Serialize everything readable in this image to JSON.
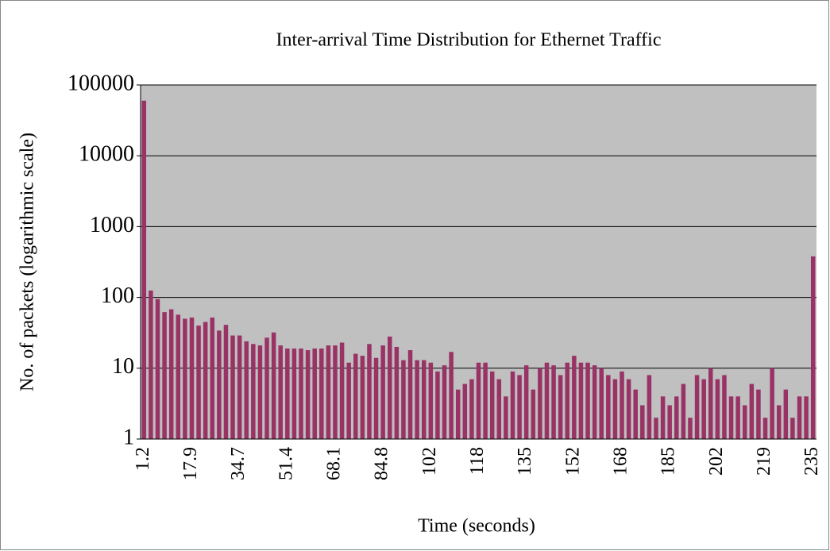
{
  "chart_data": {
    "type": "bar",
    "title": "Inter-arrival Time Distribution for Ethernet Traffic",
    "xlabel": "Time (seconds)",
    "ylabel": "No. of packets (logarithmic scale)",
    "categories": [
      "1.2",
      null,
      null,
      null,
      null,
      null,
      null,
      "17.9",
      null,
      null,
      null,
      null,
      null,
      null,
      "34.7",
      null,
      null,
      null,
      null,
      null,
      null,
      "51.4",
      null,
      null,
      null,
      null,
      null,
      null,
      "68.1",
      null,
      null,
      null,
      null,
      null,
      null,
      "84.8",
      null,
      null,
      null,
      null,
      null,
      null,
      "102",
      null,
      null,
      null,
      null,
      null,
      null,
      "118",
      null,
      null,
      null,
      null,
      null,
      null,
      "135",
      null,
      null,
      null,
      null,
      null,
      null,
      "152",
      null,
      null,
      null,
      null,
      null,
      null,
      "168",
      null,
      null,
      null,
      null,
      null,
      null,
      "185",
      null,
      null,
      null,
      null,
      null,
      null,
      "202",
      null,
      null,
      null,
      null,
      null,
      null,
      "219",
      null,
      null,
      null,
      null,
      null,
      null,
      "235"
    ],
    "values": [
      60000,
      125,
      95,
      62,
      68,
      57,
      50,
      52,
      40,
      45,
      52,
      34,
      41,
      29,
      29,
      24,
      22,
      21,
      27,
      32,
      21,
      19,
      19,
      19,
      18,
      19,
      19,
      21,
      21,
      23,
      12,
      16,
      15,
      22,
      14,
      21,
      28,
      20,
      13,
      18,
      13,
      13,
      12,
      9,
      11,
      17,
      5,
      6,
      7,
      12,
      12,
      9,
      7,
      4,
      9,
      8,
      11,
      5,
      10,
      12,
      11,
      8,
      12,
      15,
      12,
      12,
      11,
      10,
      8,
      7,
      9,
      7,
      5,
      3,
      8,
      2,
      4,
      3,
      4,
      6,
      2,
      8,
      7,
      10,
      7,
      8,
      4,
      4,
      3,
      6,
      5,
      2,
      10,
      3,
      5,
      2,
      4,
      4,
      380
    ],
    "color": "#993366",
    "plot_background": "#c0c0c0",
    "ylim": [
      1,
      100000
    ],
    "yticks": [
      1,
      10,
      100,
      1000,
      10000,
      100000
    ],
    "log_y": true,
    "grid": true
  }
}
